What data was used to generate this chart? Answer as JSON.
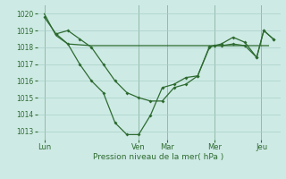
{
  "background_color": "#ceeae5",
  "grid_color": "#a8cfc8",
  "line_color": "#2d6b30",
  "xlabel": "Pression niveau de la mer( hPa )",
  "ylim": [
    1012.5,
    1020.5
  ],
  "yticks": [
    1013,
    1014,
    1015,
    1016,
    1017,
    1018,
    1019,
    1020
  ],
  "xtick_labels": [
    "Lun",
    "Ven",
    "Mar",
    "Mer",
    "Jeu"
  ],
  "xtick_positions": [
    0,
    40,
    52,
    72,
    92
  ],
  "xlim": [
    -3,
    100
  ],
  "series_flat": [
    [
      0,
      1020.0
    ],
    [
      5,
      1018.7
    ],
    [
      10,
      1018.2
    ],
    [
      15,
      1018.15
    ],
    [
      20,
      1018.1
    ],
    [
      25,
      1018.1
    ],
    [
      30,
      1018.1
    ],
    [
      35,
      1018.1
    ],
    [
      40,
      1018.1
    ],
    [
      45,
      1018.1
    ],
    [
      50,
      1018.1
    ],
    [
      55,
      1018.1
    ],
    [
      60,
      1018.1
    ],
    [
      65,
      1018.1
    ],
    [
      70,
      1018.1
    ],
    [
      75,
      1018.1
    ],
    [
      80,
      1018.1
    ],
    [
      85,
      1018.1
    ],
    [
      90,
      1018.1
    ],
    [
      95,
      1018.1
    ]
  ],
  "series_mid": [
    [
      0,
      1019.8
    ],
    [
      5,
      1018.8
    ],
    [
      10,
      1019.0
    ],
    [
      15,
      1018.5
    ],
    [
      20,
      1018.0
    ],
    [
      25,
      1017.0
    ],
    [
      30,
      1016.0
    ],
    [
      35,
      1015.3
    ],
    [
      40,
      1015.0
    ],
    [
      45,
      1014.8
    ],
    [
      50,
      1014.8
    ],
    [
      55,
      1015.6
    ],
    [
      60,
      1015.8
    ],
    [
      65,
      1016.3
    ],
    [
      70,
      1018.0
    ],
    [
      72,
      1018.1
    ],
    [
      75,
      1018.1
    ],
    [
      80,
      1018.2
    ],
    [
      85,
      1018.1
    ],
    [
      90,
      1017.4
    ],
    [
      93,
      1019.0
    ],
    [
      97,
      1018.5
    ]
  ],
  "series_deep": [
    [
      5,
      1018.8
    ],
    [
      10,
      1018.2
    ],
    [
      15,
      1017.0
    ],
    [
      20,
      1016.0
    ],
    [
      25,
      1015.3
    ],
    [
      30,
      1013.5
    ],
    [
      35,
      1012.8
    ],
    [
      40,
      1012.8
    ],
    [
      45,
      1013.95
    ],
    [
      50,
      1015.6
    ],
    [
      55,
      1015.8
    ],
    [
      60,
      1016.2
    ],
    [
      65,
      1016.3
    ],
    [
      70,
      1018.05
    ],
    [
      72,
      1018.1
    ],
    [
      75,
      1018.2
    ],
    [
      80,
      1018.6
    ],
    [
      85,
      1018.3
    ],
    [
      90,
      1017.4
    ],
    [
      93,
      1019.0
    ],
    [
      97,
      1018.5
    ]
  ]
}
